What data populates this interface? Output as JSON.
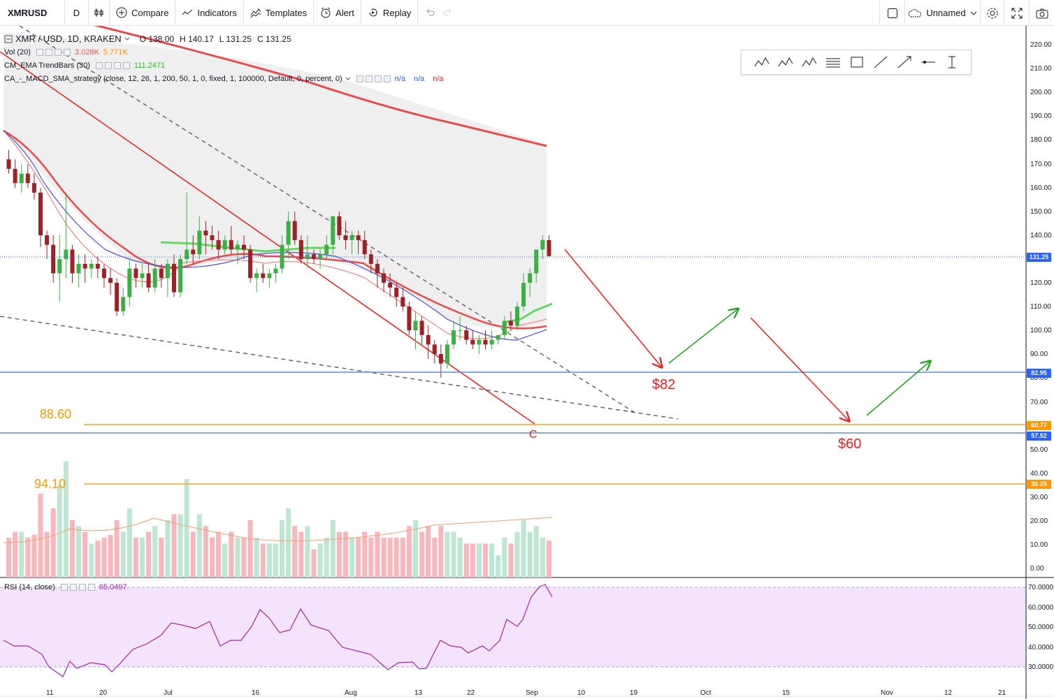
{
  "toolbar": {
    "symbol": "XMRUSD",
    "resolution": "D",
    "compare": "Compare",
    "indicators": "Indicators",
    "templates": "Templates",
    "alert": "Alert",
    "replay": "Replay",
    "layout_name": "Unnamed"
  },
  "legend": {
    "main_title": "XMR / USD, 1D, KRAKEN",
    "o": "O 138.00",
    "h": "H 140.17",
    "l": "L 131.25",
    "c": "C 131.25",
    "vol_label": "Vol (20)",
    "vol_v1": "3.028K",
    "vol_v2": "5.771K",
    "ema_label": "CM_EMA TrendBars (30)",
    "ema_value": "111.2471",
    "strategy_label": "CA_-_MACD_SMA_strategy (close, 12, 26, 1, 200, 50, 1, 0, fixed, 1, 100000, Default, 0, percent, 0)",
    "na1": "n/a",
    "na2": "n/a",
    "na3": "n/a",
    "rsi_label": "RSI (14, close)",
    "rsi_value": "65.0497"
  },
  "price_axis": [
    "220.00",
    "210.00",
    "200.00",
    "190.00",
    "180.00",
    "170.00",
    "160.00",
    "150.00",
    "140.00",
    "130.00",
    "120.00",
    "110.00",
    "100.00",
    "90.00",
    "80.00",
    "70.00",
    "60.00",
    "50.00",
    "40.00",
    "30.00",
    "20.00",
    "10.00",
    "0.00"
  ],
  "rsi_axis": [
    "70.0000",
    "60.0000",
    "50.0000",
    "40.0000",
    "30.0000"
  ],
  "price_tags": [
    {
      "text": "131.25",
      "color": "#2962ff"
    },
    {
      "text": "82.95",
      "color": "#2962ff"
    },
    {
      "text": "60.77",
      "color": "#ff9800"
    },
    {
      "text": "57.52",
      "color": "#2962ff"
    },
    {
      "text": "36.25",
      "color": "#ff9800"
    }
  ],
  "time_axis": [
    "11",
    "20",
    "Jul",
    "16",
    "Aug",
    "13",
    "22",
    "Sep",
    "10",
    "19",
    "Oct",
    "15",
    "Nov",
    "12",
    "21"
  ],
  "annotations": {
    "a82": "$82",
    "a60": "$60",
    "fib1": "88.60",
    "fib2": "94.10",
    "wave": "C"
  },
  "colors": {
    "up": "#26a69a",
    "bull_candle": "#3cb044",
    "bear_candle": "#9b2226",
    "ema_red": "#ef5350",
    "orange": "#ff9800",
    "blue": "#2962ff",
    "rsi_band": "#f3e5fb",
    "rsi_line": "#9c27b0"
  },
  "chart_data": {
    "type": "candlestick",
    "title": "XMR / USD, 1D, KRAKEN",
    "ohlc": [
      [
        172,
        176,
        166,
        168
      ],
      [
        168,
        172,
        160,
        162
      ],
      [
        162,
        170,
        158,
        166
      ],
      [
        166,
        170,
        160,
        162
      ],
      [
        162,
        166,
        155,
        158
      ],
      [
        158,
        160,
        135,
        140
      ],
      [
        140,
        142,
        130,
        136
      ],
      [
        136,
        140,
        120,
        124
      ],
      [
        124,
        140,
        112,
        130
      ],
      [
        130,
        158,
        122,
        134
      ],
      [
        134,
        136,
        120,
        124
      ],
      [
        124,
        132,
        118,
        128
      ],
      [
        128,
        132,
        120,
        126
      ],
      [
        126,
        130,
        122,
        128
      ],
      [
        128,
        131,
        122,
        126
      ],
      [
        126,
        128,
        118,
        122
      ],
      [
        122,
        126,
        115,
        120
      ],
      [
        120,
        122,
        106,
        108
      ],
      [
        108,
        118,
        106,
        114
      ],
      [
        114,
        130,
        110,
        126
      ],
      [
        126,
        128,
        118,
        122
      ],
      [
        122,
        128,
        118,
        124
      ],
      [
        124,
        128,
        116,
        118
      ],
      [
        118,
        130,
        116,
        126
      ],
      [
        126,
        128,
        118,
        122
      ],
      [
        122,
        130,
        114,
        128
      ],
      [
        128,
        132,
        114,
        116
      ],
      [
        116,
        132,
        114,
        130
      ],
      [
        130,
        158,
        128,
        134
      ],
      [
        134,
        140,
        128,
        132
      ],
      [
        132,
        148,
        130,
        142
      ],
      [
        142,
        146,
        132,
        140
      ],
      [
        140,
        144,
        134,
        138
      ],
      [
        138,
        142,
        130,
        134
      ],
      [
        134,
        140,
        132,
        138
      ],
      [
        138,
        144,
        132,
        134
      ],
      [
        134,
        138,
        128,
        136
      ],
      [
        136,
        140,
        130,
        134
      ],
      [
        134,
        136,
        120,
        122
      ],
      [
        122,
        126,
        116,
        124
      ],
      [
        124,
        128,
        120,
        122
      ],
      [
        122,
        126,
        118,
        124
      ],
      [
        124,
        128,
        120,
        126
      ],
      [
        126,
        140,
        124,
        136
      ],
      [
        136,
        150,
        130,
        146
      ],
      [
        146,
        150,
        136,
        138
      ],
      [
        138,
        140,
        128,
        130
      ],
      [
        130,
        140,
        126,
        132
      ],
      [
        132,
        134,
        128,
        130
      ],
      [
        130,
        134,
        126,
        132
      ],
      [
        132,
        140,
        130,
        136
      ],
      [
        136,
        148,
        132,
        148
      ],
      [
        148,
        150,
        138,
        140
      ],
      [
        140,
        146,
        134,
        138
      ],
      [
        138,
        142,
        132,
        140
      ],
      [
        140,
        142,
        132,
        138
      ],
      [
        138,
        142,
        130,
        132
      ],
      [
        132,
        134,
        124,
        128
      ],
      [
        128,
        130,
        118,
        124
      ],
      [
        124,
        126,
        116,
        120
      ],
      [
        120,
        124,
        114,
        118
      ],
      [
        118,
        120,
        110,
        114
      ],
      [
        114,
        118,
        108,
        110
      ],
      [
        110,
        112,
        98,
        100
      ],
      [
        100,
        108,
        92,
        104
      ],
      [
        104,
        106,
        94,
        98
      ],
      [
        98,
        102,
        88,
        94
      ],
      [
        94,
        96,
        86,
        90
      ],
      [
        90,
        94,
        80,
        86
      ],
      [
        86,
        96,
        84,
        94
      ],
      [
        94,
        104,
        92,
        100
      ],
      [
        100,
        106,
        96,
        100
      ],
      [
        100,
        102,
        94,
        96
      ],
      [
        96,
        100,
        92,
        94
      ],
      [
        94,
        98,
        90,
        96
      ],
      [
        96,
        100,
        92,
        94
      ],
      [
        94,
        100,
        92,
        96
      ],
      [
        96,
        98,
        94,
        98
      ],
      [
        98,
        106,
        96,
        104
      ],
      [
        104,
        108,
        100,
        102
      ],
      [
        102,
        112,
        100,
        110
      ],
      [
        110,
        124,
        108,
        120
      ],
      [
        120,
        126,
        114,
        124
      ],
      [
        124,
        134,
        120,
        134
      ],
      [
        134,
        140,
        130,
        138
      ],
      [
        138,
        140,
        131,
        131.25
      ]
    ],
    "ylabel": "",
    "ylim": [
      0,
      220
    ]
  }
}
